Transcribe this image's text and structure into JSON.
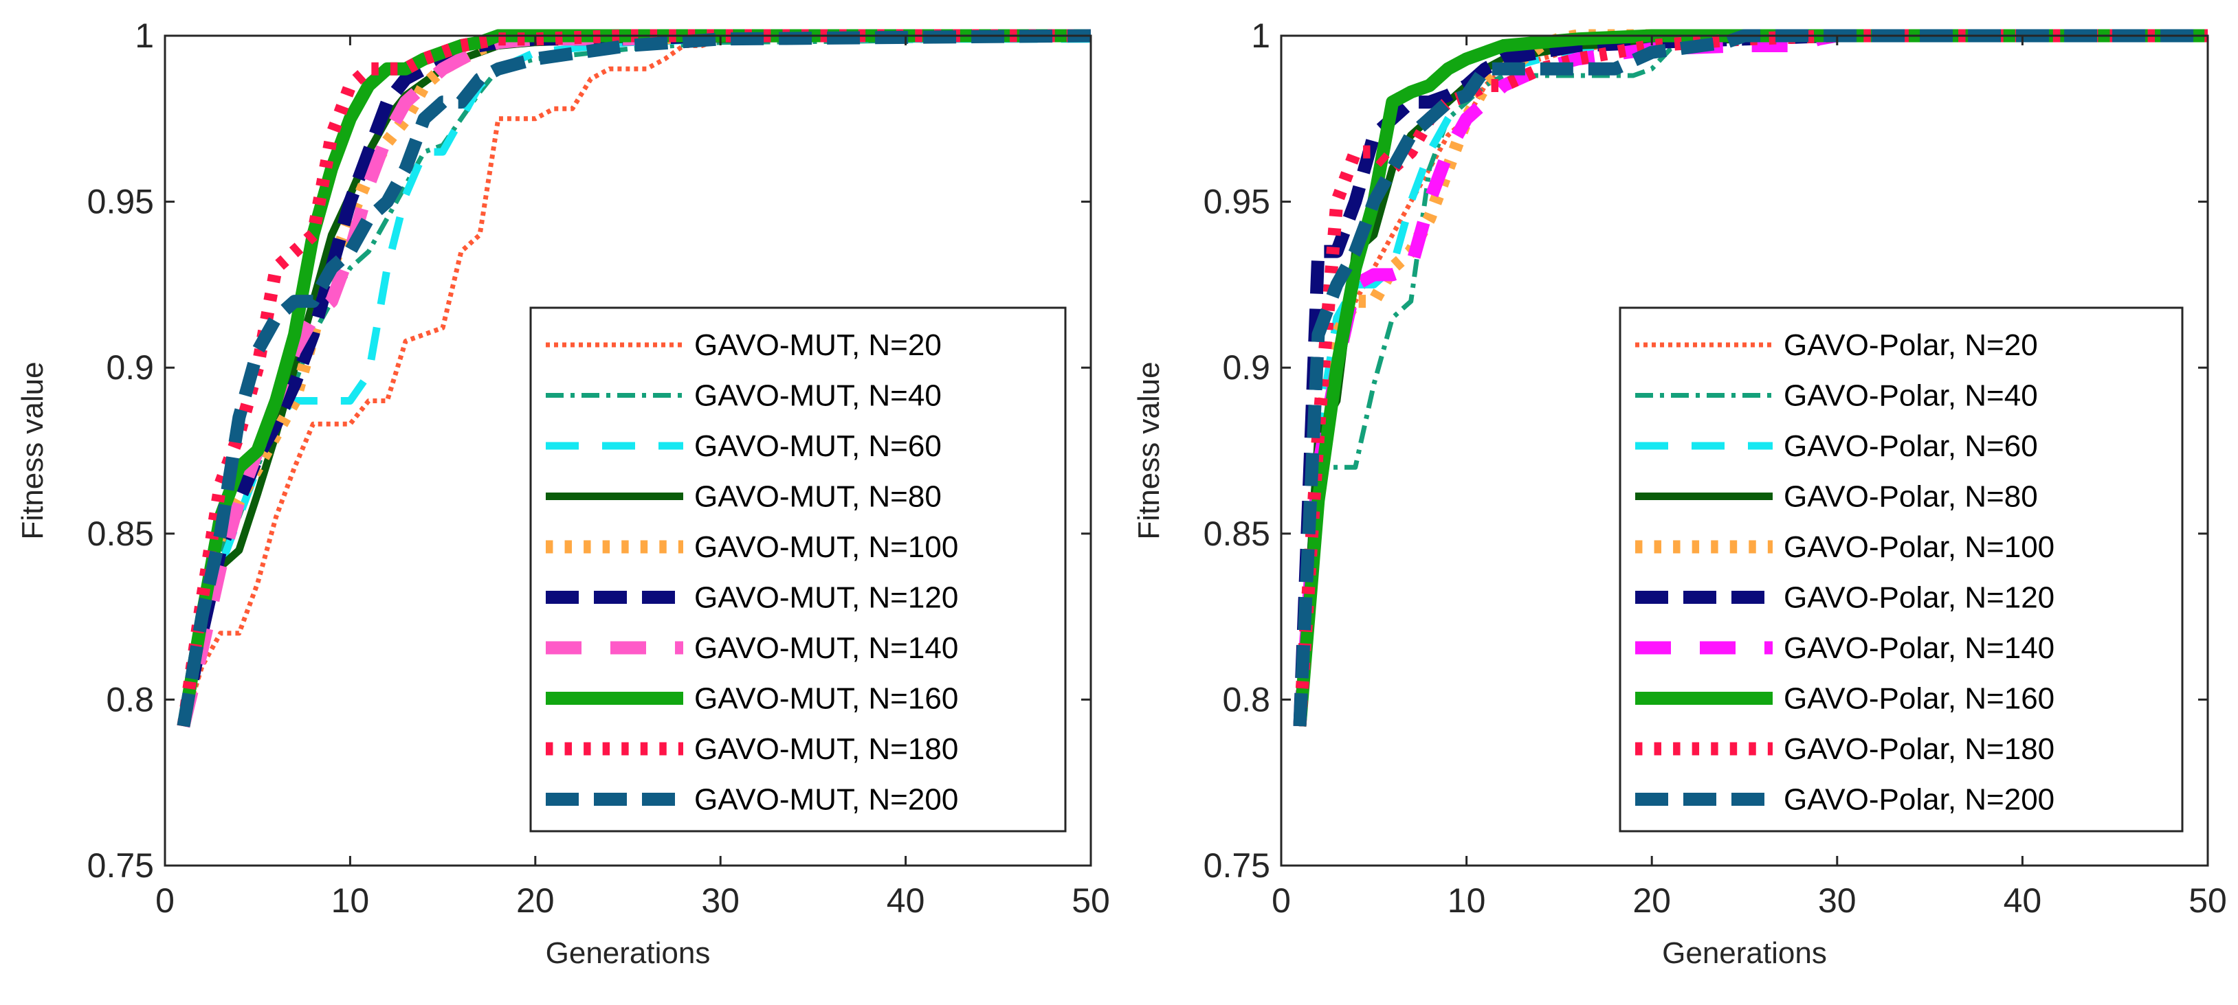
{
  "chart_data": [
    {
      "type": "line",
      "xlabel": "Generations",
      "ylabel": "Fitness value",
      "xlim": [
        0,
        50
      ],
      "ylim": [
        0.75,
        1
      ],
      "xticks": [
        "0",
        "10",
        "20",
        "30",
        "40",
        "50"
      ],
      "yticks": [
        "0.75",
        "0.8",
        "0.85",
        "0.9",
        "0.95",
        "1"
      ],
      "legend_position": "lower-right",
      "series": [
        {
          "name": "GAVO-MUT, N=20",
          "color": "#ff5a36",
          "style": "dotted",
          "width": "thin",
          "x": [
            1,
            2,
            3,
            4,
            5,
            6,
            7,
            8,
            9,
            10,
            11,
            12,
            13,
            14,
            15,
            16,
            17,
            18,
            19,
            20,
            21,
            22,
            23,
            24,
            25,
            26,
            27,
            28,
            29,
            30,
            50
          ],
          "y": [
            0.792,
            0.81,
            0.82,
            0.82,
            0.835,
            0.855,
            0.87,
            0.883,
            0.883,
            0.883,
            0.89,
            0.89,
            0.908,
            0.91,
            0.912,
            0.935,
            0.94,
            0.975,
            0.975,
            0.975,
            0.978,
            0.978,
            0.987,
            0.99,
            0.99,
            0.99,
            0.993,
            0.997,
            0.997,
            0.999,
            0.999
          ]
        },
        {
          "name": "GAVO-MUT, N=40",
          "color": "#14a07a",
          "style": "dashdot",
          "width": "thin",
          "x": [
            1,
            2,
            3,
            4,
            5,
            6,
            7,
            8,
            9,
            10,
            11,
            12,
            13,
            14,
            15,
            16,
            17,
            18,
            20,
            25,
            30,
            50
          ],
          "y": [
            0.792,
            0.82,
            0.845,
            0.855,
            0.87,
            0.885,
            0.895,
            0.91,
            0.92,
            0.93,
            0.935,
            0.945,
            0.955,
            0.965,
            0.967,
            0.975,
            0.983,
            0.99,
            0.993,
            0.996,
            0.998,
            0.999
          ]
        },
        {
          "name": "GAVO-MUT, N=60",
          "color": "#15e8f2",
          "style": "longdash",
          "width": "medium",
          "x": [
            1,
            2,
            3,
            4,
            5,
            6,
            7,
            8,
            9,
            10,
            11,
            12,
            13,
            14,
            15,
            16,
            17,
            18,
            20,
            25,
            30,
            50
          ],
          "y": [
            0.792,
            0.822,
            0.84,
            0.855,
            0.87,
            0.885,
            0.89,
            0.89,
            0.89,
            0.89,
            0.898,
            0.93,
            0.952,
            0.965,
            0.965,
            0.975,
            0.985,
            0.99,
            0.995,
            0.998,
            0.999,
            0.999
          ]
        },
        {
          "name": "GAVO-MUT, N=80",
          "color": "#0a5c0a",
          "style": "solid",
          "width": "medium",
          "x": [
            1,
            2,
            3,
            4,
            5,
            6,
            7,
            8,
            9,
            10,
            11,
            12,
            13,
            14,
            15,
            16,
            17,
            18,
            20,
            25,
            30,
            50
          ],
          "y": [
            0.792,
            0.82,
            0.84,
            0.845,
            0.862,
            0.88,
            0.9,
            0.92,
            0.94,
            0.952,
            0.965,
            0.975,
            0.982,
            0.986,
            0.99,
            0.993,
            0.995,
            0.997,
            0.998,
            0.999,
            0.999,
            1.0
          ]
        },
        {
          "name": "GAVO-MUT, N=100",
          "color": "#ffa843",
          "style": "dotted",
          "width": "thick",
          "x": [
            1,
            2,
            3,
            4,
            5,
            6,
            7,
            8,
            9,
            10,
            11,
            12,
            13,
            14,
            15,
            16,
            17,
            18,
            20,
            25,
            30,
            50
          ],
          "y": [
            0.792,
            0.825,
            0.85,
            0.86,
            0.87,
            0.88,
            0.89,
            0.91,
            0.93,
            0.945,
            0.958,
            0.968,
            0.975,
            0.985,
            0.99,
            0.993,
            0.996,
            0.998,
            0.999,
            0.999,
            1.0,
            1.0
          ]
        },
        {
          "name": "GAVO-MUT, N=120",
          "color": "#0a0a7a",
          "style": "dashed",
          "width": "thick",
          "x": [
            1,
            2,
            3,
            4,
            5,
            6,
            7,
            8,
            9,
            10,
            11,
            12,
            13,
            14,
            15,
            16,
            17,
            18,
            20,
            25,
            30,
            50
          ],
          "y": [
            0.792,
            0.82,
            0.845,
            0.86,
            0.873,
            0.883,
            0.895,
            0.91,
            0.93,
            0.95,
            0.965,
            0.98,
            0.987,
            0.99,
            0.993,
            0.996,
            0.997,
            0.998,
            0.999,
            0.999,
            1.0,
            1.0
          ]
        },
        {
          "name": "GAVO-MUT, N=140",
          "color": "#ff5ac8",
          "style": "longdash",
          "width": "thick",
          "x": [
            1,
            2,
            3,
            4,
            5,
            6,
            7,
            8,
            9,
            10,
            11,
            12,
            13,
            14,
            15,
            16,
            17,
            18,
            20,
            25,
            30,
            50
          ],
          "y": [
            0.792,
            0.815,
            0.84,
            0.86,
            0.875,
            0.89,
            0.905,
            0.915,
            0.92,
            0.935,
            0.955,
            0.97,
            0.98,
            0.985,
            0.99,
            0.993,
            0.996,
            0.998,
            0.999,
            0.999,
            1.0,
            1.0
          ]
        },
        {
          "name": "GAVO-MUT, N=160",
          "color": "#11a611",
          "style": "solid",
          "width": "thick",
          "x": [
            1,
            2,
            3,
            4,
            5,
            6,
            7,
            8,
            9,
            10,
            11,
            12,
            13,
            14,
            15,
            16,
            17,
            18,
            20,
            25,
            30,
            50
          ],
          "y": [
            0.792,
            0.825,
            0.855,
            0.87,
            0.875,
            0.89,
            0.91,
            0.94,
            0.96,
            0.975,
            0.985,
            0.99,
            0.99,
            0.993,
            0.995,
            0.997,
            0.998,
            1.0,
            1.0,
            1.0,
            1.0,
            1.0
          ]
        },
        {
          "name": "GAVO-MUT, N=180",
          "color": "#ff1448",
          "style": "dotted",
          "width": "thick",
          "x": [
            1,
            2,
            3,
            4,
            5,
            6,
            7,
            8,
            9,
            10,
            11,
            12,
            13,
            14,
            15,
            16,
            17,
            18,
            20,
            25,
            30,
            50
          ],
          "y": [
            0.792,
            0.83,
            0.865,
            0.88,
            0.9,
            0.93,
            0.935,
            0.94,
            0.97,
            0.985,
            0.99,
            0.99,
            0.99,
            0.993,
            0.995,
            0.997,
            0.998,
            0.999,
            0.999,
            1.0,
            1.0,
            1.0
          ]
        },
        {
          "name": "GAVO-MUT, N=200",
          "color": "#0f5c84",
          "style": "dashed",
          "width": "thick",
          "x": [
            1,
            2,
            3,
            4,
            5,
            6,
            7,
            8,
            9,
            10,
            11,
            12,
            13,
            14,
            15,
            16,
            17,
            18,
            20,
            25,
            30,
            50
          ],
          "y": [
            0.792,
            0.825,
            0.85,
            0.885,
            0.905,
            0.915,
            0.92,
            0.92,
            0.93,
            0.935,
            0.945,
            0.95,
            0.96,
            0.975,
            0.98,
            0.98,
            0.987,
            0.99,
            0.993,
            0.997,
            0.999,
            1.0
          ]
        }
      ]
    },
    {
      "type": "line",
      "xlabel": "Generations",
      "ylabel": "Fitness value",
      "xlim": [
        0,
        50
      ],
      "ylim": [
        0.75,
        1
      ],
      "xticks": [
        "0",
        "10",
        "20",
        "30",
        "40",
        "50"
      ],
      "yticks": [
        "0.75",
        "0.8",
        "0.85",
        "0.9",
        "0.95",
        "1"
      ],
      "legend_position": "lower-right",
      "series": [
        {
          "name": "GAVO-Polar, N=20",
          "color": "#ff5a36",
          "style": "dotted",
          "width": "thin",
          "x": [
            1,
            2,
            3,
            4,
            5,
            6,
            7,
            8,
            9,
            10,
            11,
            12,
            14,
            16,
            20,
            25,
            30,
            50
          ],
          "y": [
            0.792,
            0.87,
            0.9,
            0.92,
            0.93,
            0.94,
            0.95,
            0.96,
            0.97,
            0.975,
            0.985,
            0.99,
            0.993,
            0.996,
            0.998,
            0.999,
            1.0,
            1.0
          ]
        },
        {
          "name": "GAVO-Polar, N=40",
          "color": "#14a07a",
          "style": "dashdot",
          "width": "thin",
          "x": [
            1,
            2,
            3,
            4,
            5,
            6,
            7,
            8,
            9,
            10,
            11,
            12,
            14,
            16,
            18,
            19,
            20,
            21,
            22,
            25,
            30,
            50
          ],
          "y": [
            0.792,
            0.87,
            0.87,
            0.87,
            0.895,
            0.915,
            0.92,
            0.96,
            0.975,
            0.98,
            0.985,
            0.988,
            0.988,
            0.988,
            0.988,
            0.988,
            0.99,
            0.996,
            0.998,
            0.999,
            1.0,
            1.0
          ]
        },
        {
          "name": "GAVO-Polar, N=60",
          "color": "#15e8f2",
          "style": "longdash",
          "width": "medium",
          "x": [
            1,
            2,
            3,
            4,
            5,
            6,
            7,
            8,
            9,
            10,
            11,
            12,
            14,
            16,
            20,
            25,
            30,
            50
          ],
          "y": [
            0.792,
            0.88,
            0.915,
            0.925,
            0.925,
            0.93,
            0.95,
            0.965,
            0.975,
            0.983,
            0.988,
            0.99,
            0.993,
            0.996,
            0.998,
            0.999,
            1.0,
            1.0
          ]
        },
        {
          "name": "GAVO-Polar, N=80",
          "color": "#0a5c0a",
          "style": "solid",
          "width": "medium",
          "x": [
            1,
            2,
            3,
            4,
            5,
            6,
            7,
            8,
            9,
            10,
            11,
            12,
            14,
            16,
            20,
            25,
            30,
            50
          ],
          "y": [
            0.792,
            0.88,
            0.89,
            0.935,
            0.94,
            0.96,
            0.97,
            0.975,
            0.98,
            0.985,
            0.99,
            0.993,
            0.995,
            0.997,
            0.998,
            0.999,
            1.0,
            1.0
          ]
        },
        {
          "name": "GAVO-Polar, N=100",
          "color": "#ffa843",
          "style": "dotted",
          "width": "thick",
          "x": [
            1,
            2,
            3,
            4,
            5,
            6,
            7,
            8,
            9,
            10,
            11,
            12,
            13,
            14,
            15,
            16,
            20,
            25,
            30,
            50
          ],
          "y": [
            0.792,
            0.88,
            0.91,
            0.92,
            0.92,
            0.93,
            0.935,
            0.945,
            0.96,
            0.975,
            0.985,
            0.99,
            0.993,
            0.997,
            0.999,
            1.0,
            1.0,
            1.0,
            1.0,
            1.0
          ]
        },
        {
          "name": "GAVO-Polar, N=120",
          "color": "#0a0a7a",
          "style": "dashed",
          "width": "thick",
          "x": [
            1,
            2,
            3,
            4,
            5,
            6,
            7,
            8,
            9,
            10,
            11,
            12,
            14,
            16,
            20,
            25,
            30,
            50
          ],
          "y": [
            0.792,
            0.935,
            0.935,
            0.95,
            0.97,
            0.975,
            0.98,
            0.98,
            0.982,
            0.985,
            0.99,
            0.993,
            0.995,
            0.997,
            0.998,
            0.999,
            1.0,
            1.0
          ]
        },
        {
          "name": "GAVO-Polar, N=140",
          "color": "#ff14ff",
          "style": "longdash",
          "width": "thick",
          "x": [
            1,
            2,
            3,
            4,
            5,
            6,
            7,
            8,
            9,
            10,
            11,
            12,
            14,
            16,
            20,
            25,
            28,
            29,
            30,
            50
          ],
          "y": [
            0.792,
            0.87,
            0.9,
            0.925,
            0.928,
            0.928,
            0.93,
            0.95,
            0.965,
            0.975,
            0.98,
            0.985,
            0.99,
            0.993,
            0.996,
            0.997,
            0.997,
            0.999,
            1.0,
            1.0
          ]
        },
        {
          "name": "GAVO-Polar, N=160",
          "color": "#11a611",
          "style": "solid",
          "width": "thick",
          "x": [
            1,
            2,
            3,
            4,
            5,
            6,
            7,
            8,
            9,
            10,
            11,
            12,
            14,
            16,
            20,
            25,
            30,
            50
          ],
          "y": [
            0.792,
            0.86,
            0.9,
            0.93,
            0.95,
            0.98,
            0.983,
            0.985,
            0.99,
            0.993,
            0.995,
            0.997,
            0.998,
            0.999,
            1.0,
            1.0,
            1.0,
            1.0
          ]
        },
        {
          "name": "GAVO-Polar, N=180",
          "color": "#ff1448",
          "style": "dotted",
          "width": "thick",
          "x": [
            1,
            2,
            3,
            4,
            5,
            6,
            7,
            8,
            9,
            10,
            11,
            12,
            14,
            16,
            20,
            25,
            30,
            50
          ],
          "y": [
            0.792,
            0.88,
            0.95,
            0.965,
            0.965,
            0.96,
            0.965,
            0.975,
            0.98,
            0.982,
            0.985,
            0.985,
            0.99,
            0.993,
            0.997,
            0.999,
            1.0,
            1.0
          ]
        },
        {
          "name": "GAVO-Polar, N=200",
          "color": "#0f5c84",
          "style": "dashed",
          "width": "thick",
          "x": [
            1,
            2,
            3,
            4,
            5,
            6,
            7,
            8,
            9,
            10,
            11,
            12,
            14,
            16,
            18,
            20,
            24,
            25,
            30,
            50
          ],
          "y": [
            0.792,
            0.91,
            0.925,
            0.935,
            0.95,
            0.96,
            0.97,
            0.975,
            0.98,
            0.982,
            0.99,
            0.99,
            0.99,
            0.99,
            0.99,
            0.995,
            0.998,
            1.0,
            1.0,
            1.0
          ]
        }
      ]
    }
  ]
}
